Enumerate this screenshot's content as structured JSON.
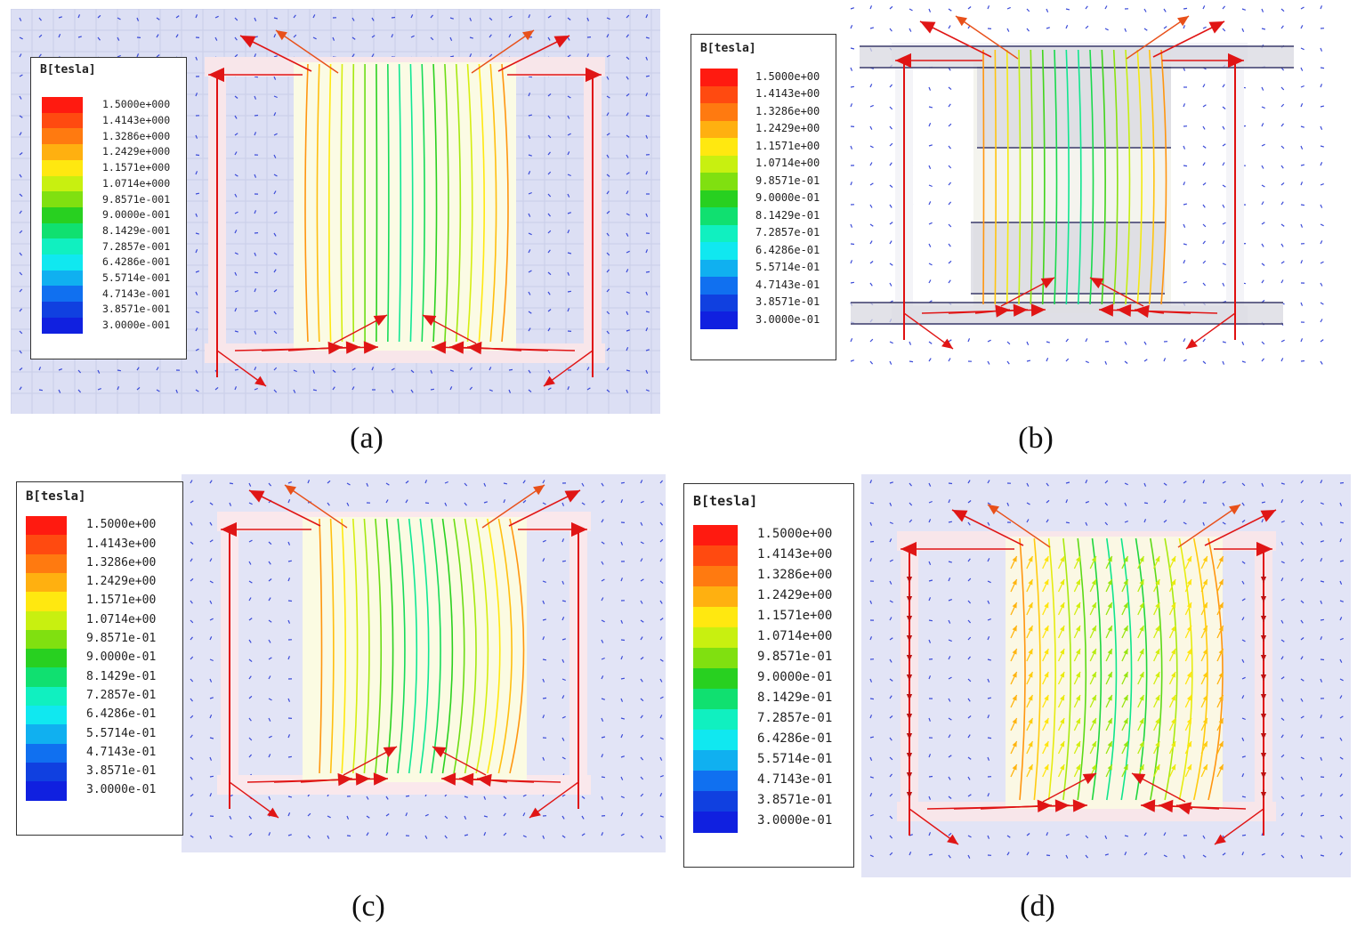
{
  "legend": {
    "title": "B[tesla]",
    "colors": [
      "#ff1a10",
      "#ff4a10",
      "#ff7a10",
      "#ffb010",
      "#ffe810",
      "#c8f010",
      "#80e010",
      "#28d020",
      "#10e070",
      "#10f0c0",
      "#10e8f0",
      "#10b0f0",
      "#1070f0",
      "#1040e0",
      "#1020e0"
    ]
  },
  "panels": [
    {
      "id": "a",
      "caption": "(a)",
      "ticks": [
        "1.5000e+000",
        "1.4143e+000",
        "1.3286e+000",
        "1.2429e+000",
        "1.1571e+000",
        "1.0714e+000",
        "9.8571e-001",
        "9.0000e-001",
        "8.1429e-001",
        "7.2857e-001",
        "6.4286e-001",
        "5.5714e-001",
        "4.7143e-001",
        "3.8571e-001",
        "3.0000e-001"
      ]
    },
    {
      "id": "b",
      "caption": "(b)",
      "ticks": [
        "1.5000e+00",
        "1.4143e+00",
        "1.3286e+00",
        "1.2429e+00",
        "1.1571e+00",
        "1.0714e+00",
        "9.8571e-01",
        "9.0000e-01",
        "8.1429e-01",
        "7.2857e-01",
        "6.4286e-01",
        "5.5714e-01",
        "4.7143e-01",
        "3.8571e-01",
        "3.0000e-01"
      ]
    },
    {
      "id": "c",
      "caption": "(c)",
      "ticks": [
        "1.5000e+00",
        "1.4143e+00",
        "1.3286e+00",
        "1.2429e+00",
        "1.1571e+00",
        "1.0714e+00",
        "9.8571e-01",
        "9.0000e-01",
        "8.1429e-01",
        "7.2857e-01",
        "6.4286e-01",
        "5.5714e-01",
        "4.7143e-01",
        "3.8571e-01",
        "3.0000e-01"
      ]
    },
    {
      "id": "d",
      "caption": "(d)",
      "ticks": [
        "1.5000e+00",
        "1.4143e+00",
        "1.3286e+00",
        "1.2429e+00",
        "1.1571e+00",
        "1.0714e+00",
        "9.8571e-01",
        "9.0000e-01",
        "8.1429e-01",
        "7.2857e-01",
        "6.4286e-01",
        "5.5714e-01",
        "4.7143e-01",
        "3.8571e-01",
        "3.0000e-01"
      ]
    }
  ]
}
